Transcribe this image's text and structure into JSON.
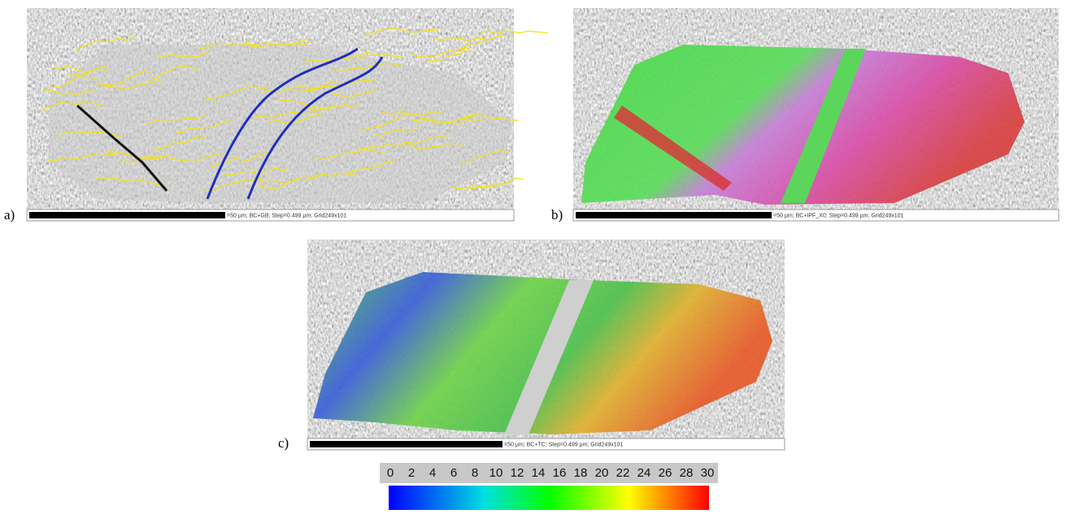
{
  "panels": [
    {
      "label": "a)",
      "caption": "=50 µm; BC+GB; Step=0.499 µm; Grid249x101"
    },
    {
      "label": "b)",
      "caption": "=50 µm; BC+IPF_X0; Step=0.499 µm; Grid249x101"
    },
    {
      "label": "c)",
      "caption": "=50 µm; BC+TC; Step=0.499 µm; Grid249x101"
    }
  ],
  "colorbar": {
    "ticks": [
      0,
      2,
      4,
      6,
      8,
      10,
      12,
      14,
      16,
      18,
      20,
      22,
      24,
      26,
      28,
      30
    ]
  }
}
